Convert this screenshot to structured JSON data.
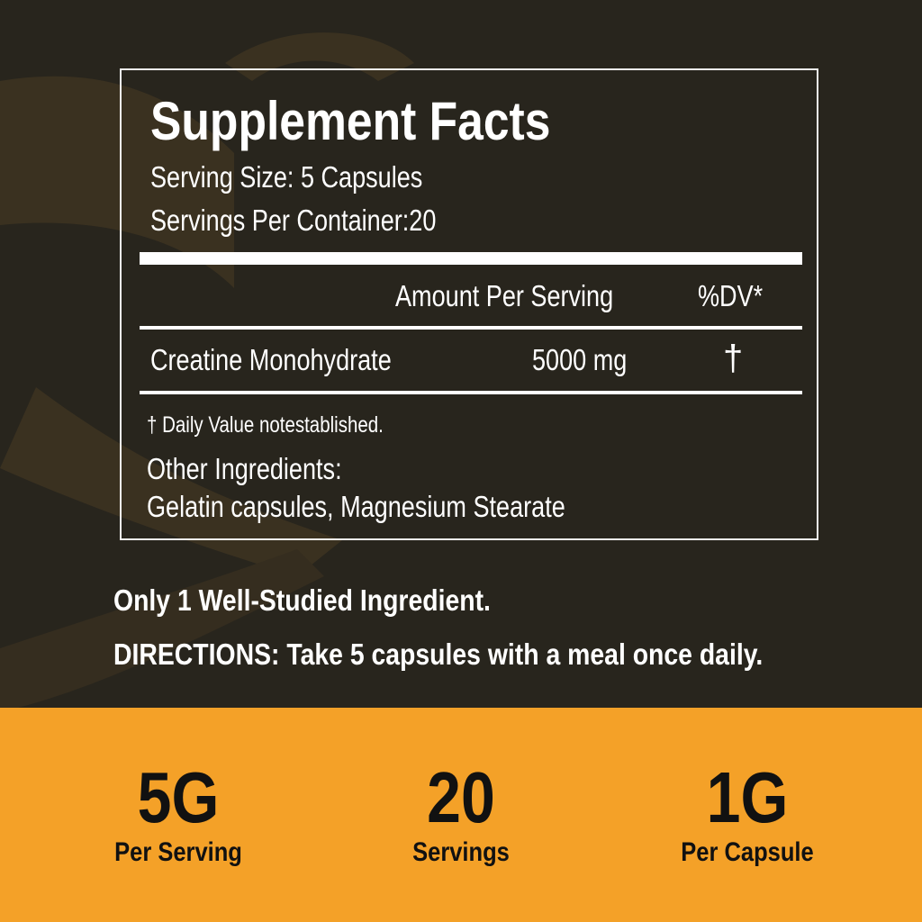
{
  "colors": {
    "background": "#28251d",
    "accent": "#f4a128",
    "text": "#ffffff"
  },
  "facts": {
    "title": "Supplement Facts",
    "serving_size": "Serving Size: 5 Capsules",
    "servings_per_container": "Servings Per Container:20",
    "header_amount": "Amount Per Serving",
    "header_dv": "%DV*",
    "rows": [
      {
        "name": "Creatine Monohydrate",
        "amount": "5000 mg",
        "dv": "†"
      }
    ],
    "footnote": "† Daily Value notestablished.",
    "other_label": "Other Ingredients:",
    "other_value": "Gelatin capsules, Magnesium Stearate"
  },
  "tagline": "Only 1 Well-Studied Ingredient.",
  "directions": "DIRECTIONS: Take 5 capsules with a meal once daily.",
  "stats": [
    {
      "value": "5G",
      "label": "Per Serving"
    },
    {
      "value": "20",
      "label": "Servings"
    },
    {
      "value": "1G",
      "label": "Per Capsule"
    }
  ]
}
